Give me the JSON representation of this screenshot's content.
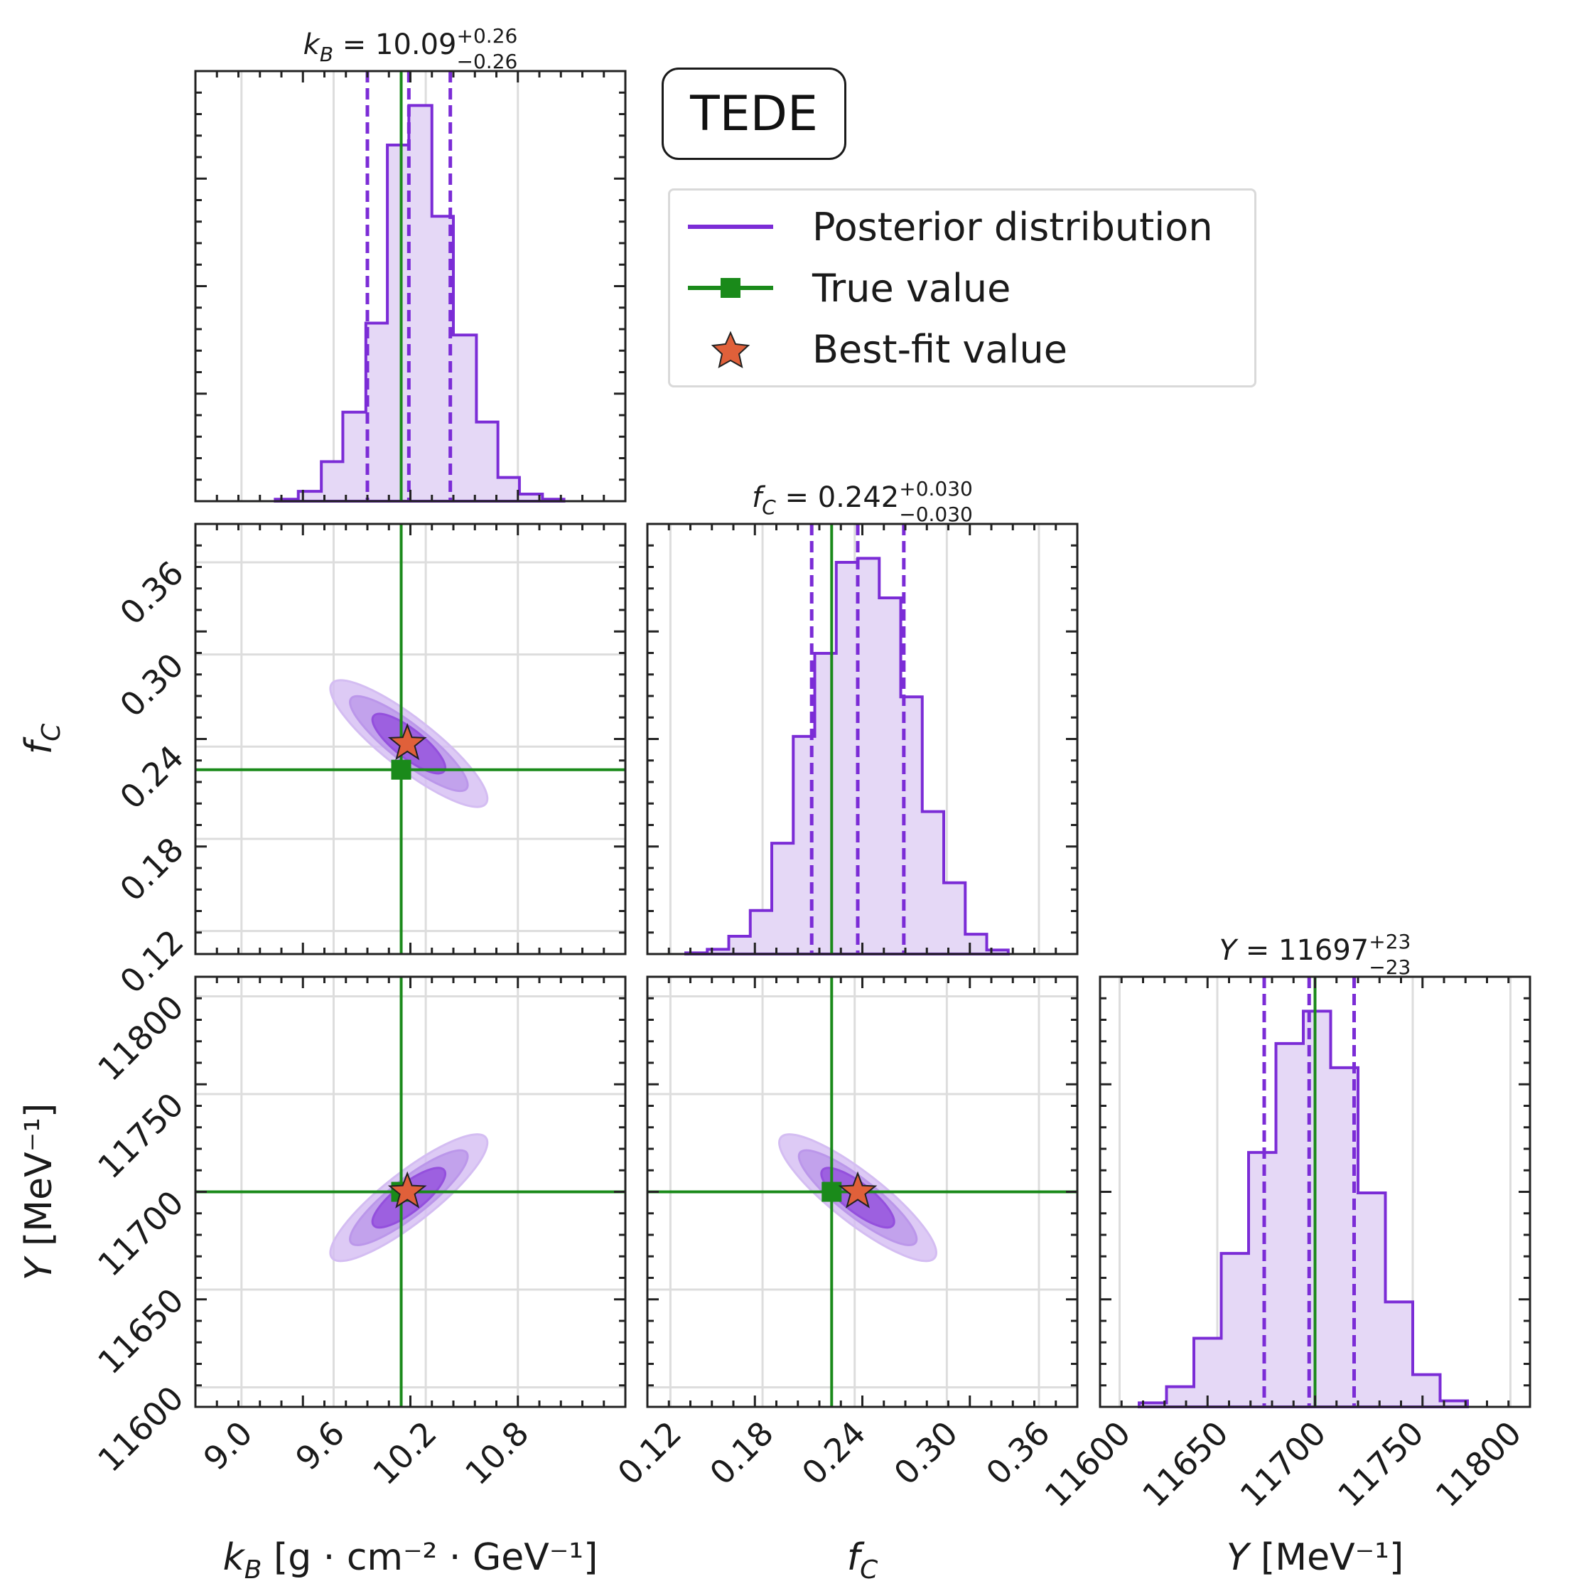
{
  "badge": {
    "label": "TEDE"
  },
  "legend": {
    "posterior": {
      "label": "Posterior distribution",
      "color": "#7b2cd6"
    },
    "truth": {
      "label": "True value",
      "color": "#1a8a1a"
    },
    "bestfit": {
      "label": "Best-fit value",
      "color": "#e0603a"
    }
  },
  "chart_data": {
    "type": "corner",
    "parameters": [
      {
        "key": "kB",
        "symbol": "k",
        "sub": "B",
        "label_unit": " [g · cm⁻² · GeV⁻¹]",
        "median": "10.09",
        "plus": "+0.26",
        "minus": "−0.26",
        "range": [
          8.7,
          11.5
        ],
        "ticks": [
          9.0,
          9.6,
          10.2,
          10.8
        ],
        "tick_labels": [
          "9.0",
          "9.6",
          "10.2",
          "10.8"
        ],
        "true": 10.04,
        "best": 10.08,
        "quantiles": [
          9.82,
          10.09,
          10.36
        ]
      },
      {
        "key": "fC",
        "symbol": "f",
        "sub": "C",
        "label_unit": "",
        "median": "0.242",
        "plus": "+0.030",
        "minus": "−0.030",
        "range": [
          0.105,
          0.385
        ],
        "ticks": [
          0.12,
          0.18,
          0.24,
          0.3,
          0.36
        ],
        "tick_labels": [
          "0.12",
          "0.18",
          "0.24",
          "0.30",
          "0.36"
        ],
        "true": 0.225,
        "best": 0.242,
        "quantiles": [
          0.212,
          0.242,
          0.272
        ]
      },
      {
        "key": "Y",
        "symbol": "Y",
        "sub": "",
        "label_unit": " [MeV⁻¹]",
        "median": "11697",
        "plus": "+23",
        "minus": "−23",
        "range": [
          11590,
          11810
        ],
        "ticks": [
          11600,
          11650,
          11700,
          11750,
          11800
        ],
        "tick_labels": [
          "11600",
          "11650",
          "11700",
          "11750",
          "11800"
        ],
        "true": 11700,
        "best": 11700,
        "quantiles": [
          11674,
          11697,
          11720
        ]
      }
    ],
    "histograms": [
      {
        "param": "kB",
        "edges": [
          9.22,
          9.37,
          9.52,
          9.66,
          9.81,
          9.95,
          10.09,
          10.24,
          10.38,
          10.53,
          10.67,
          10.81,
          10.96,
          11.1
        ],
        "counts": [
          0.005,
          0.025,
          0.1,
          0.225,
          0.45,
          0.9,
          1.0,
          0.72,
          0.42,
          0.2,
          0.06,
          0.018,
          0.005
        ]
      },
      {
        "param": "fC",
        "edges": [
          0.13,
          0.144,
          0.158,
          0.172,
          0.186,
          0.2,
          0.214,
          0.228,
          0.242,
          0.256,
          0.27,
          0.284,
          0.298,
          0.312,
          0.326,
          0.34
        ],
        "counts": [
          0.003,
          0.012,
          0.045,
          0.11,
          0.28,
          0.55,
          0.76,
          0.99,
          1.0,
          0.9,
          0.65,
          0.36,
          0.18,
          0.05,
          0.01
        ]
      },
      {
        "param": "Y",
        "edges": [
          11610,
          11624,
          11638,
          11652,
          11666,
          11680,
          11694,
          11708,
          11722,
          11736,
          11750,
          11764,
          11778
        ],
        "counts": [
          0.01,
          0.05,
          0.17,
          0.38,
          0.63,
          0.9,
          0.98,
          0.84,
          0.53,
          0.26,
          0.08,
          0.015
        ]
      }
    ],
    "contours": [
      {
        "x": "kB",
        "y": "fC",
        "center": [
          10.09,
          0.242
        ],
        "levels": [
          {
            "major": 0.55,
            "minor": 0.022,
            "angle": -0.74,
            "rx": 0.9
          },
          {
            "major": 0.9,
            "minor": 0.033,
            "angle": -0.74,
            "rx": 0.9
          },
          {
            "major": 1.2,
            "minor": 0.045,
            "angle": -0.74,
            "rx": 0.9
          }
        ]
      },
      {
        "x": "kB",
        "y": "Y",
        "center": [
          10.09,
          11697
        ],
        "levels": [
          {
            "major": 0.55,
            "minor": 0.022,
            "angle": 0.72,
            "rx": 0.9
          },
          {
            "major": 0.9,
            "minor": 0.033,
            "angle": 0.72,
            "rx": 0.9
          },
          {
            "major": 1.2,
            "minor": 0.045,
            "angle": 0.72,
            "rx": 0.9
          }
        ]
      },
      {
        "x": "fC",
        "y": "Y",
        "center": [
          0.242,
          11697
        ],
        "levels": [
          {
            "major": 0.55,
            "minor": 0.022,
            "angle": -0.74,
            "rx": 0.9
          },
          {
            "major": 0.9,
            "minor": 0.033,
            "angle": -0.74,
            "rx": 0.9
          },
          {
            "major": 1.2,
            "minor": 0.045,
            "angle": -0.74,
            "rx": 0.9
          }
        ]
      }
    ],
    "colors": {
      "posterior": "#7b2cd6",
      "fill": "#e5d8f6",
      "c1": "#d4bdf2",
      "c2": "#bb97ea",
      "c3": "#9450dd",
      "truth": "#1a8a1a",
      "best": "#e0603a",
      "grid": "#dddddd"
    },
    "grid": true,
    "legend_position": "upper-right"
  }
}
